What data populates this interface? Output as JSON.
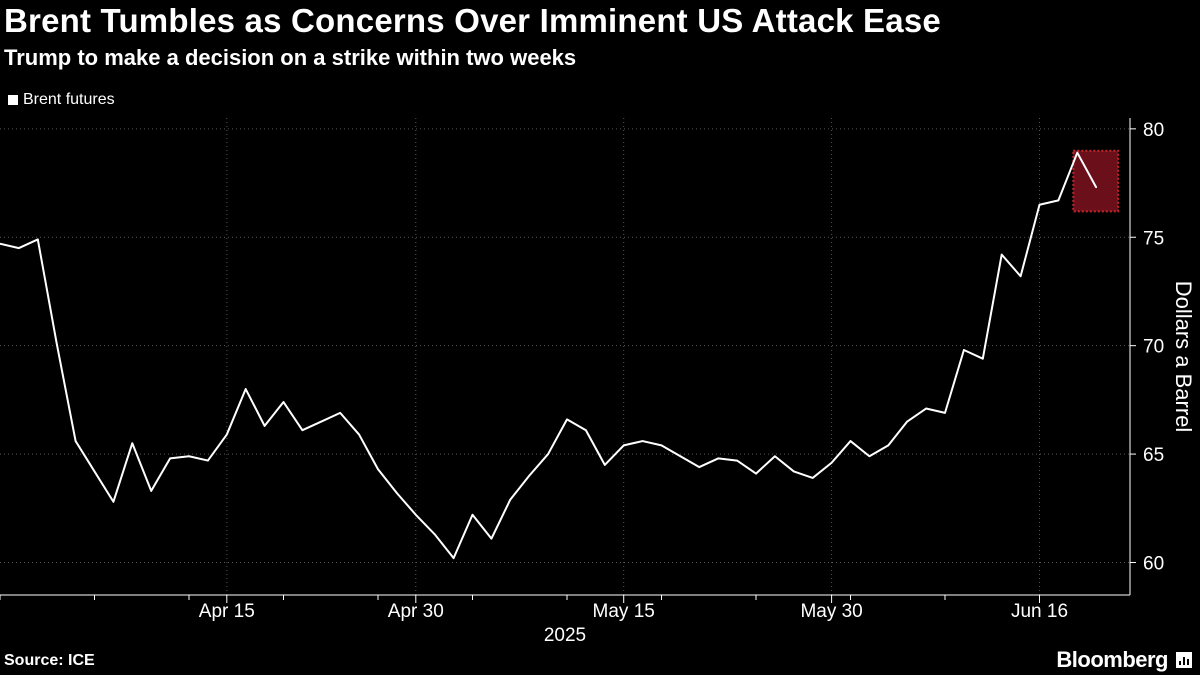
{
  "header": {
    "title": "Brent Tumbles as Concerns Over Imminent US Attack Ease",
    "subtitle": "Trump to make a decision on a strike within two weeks"
  },
  "legend": {
    "label": "Brent futures"
  },
  "footer": {
    "source": "Source: ICE",
    "brand": "Bloomberg"
  },
  "colors": {
    "background": "#000000",
    "line": "#ffffff",
    "grid": "#555555",
    "highlight_fill": "#6b0f1a",
    "highlight_border": "#c1272d"
  },
  "chart_data": {
    "type": "line",
    "title": "Brent Tumbles as Concerns Over Imminent US Attack Ease",
    "subtitle": "Trump to make a decision on a strike within two weeks",
    "xlabel": "2025",
    "ylabel": "Dollars a Barrel",
    "ylim": [
      58.5,
      80.5
    ],
    "yticks": [
      60,
      65,
      70,
      75,
      80
    ],
    "grid": true,
    "legend_position": "top-left",
    "x_ticks": [
      {
        "label": "Apr 15",
        "index": 12
      },
      {
        "label": "Apr 30",
        "index": 22
      },
      {
        "label": "May 15",
        "index": 33
      },
      {
        "label": "May 30",
        "index": 44
      },
      {
        "label": "Jun 16",
        "index": 55
      }
    ],
    "x_range": [
      0,
      60
    ],
    "series": [
      {
        "name": "Brent futures",
        "values": [
          74.7,
          74.5,
          74.9,
          70.1,
          65.6,
          64.2,
          62.8,
          65.5,
          63.3,
          64.8,
          64.9,
          64.7,
          65.9,
          68.0,
          66.3,
          67.4,
          66.1,
          66.5,
          66.9,
          65.9,
          64.3,
          63.2,
          62.2,
          61.3,
          60.2,
          62.2,
          61.1,
          62.9,
          64.0,
          65.0,
          66.6,
          66.1,
          64.5,
          65.4,
          65.6,
          65.4,
          64.9,
          64.4,
          64.8,
          64.7,
          64.1,
          64.9,
          64.2,
          63.9,
          64.6,
          65.6,
          64.9,
          65.4,
          66.5,
          67.1,
          66.9,
          69.8,
          69.4,
          74.2,
          73.2,
          76.5,
          76.7,
          78.9,
          77.3
        ],
        "highlight_range": [
          57,
          58
        ]
      }
    ]
  }
}
